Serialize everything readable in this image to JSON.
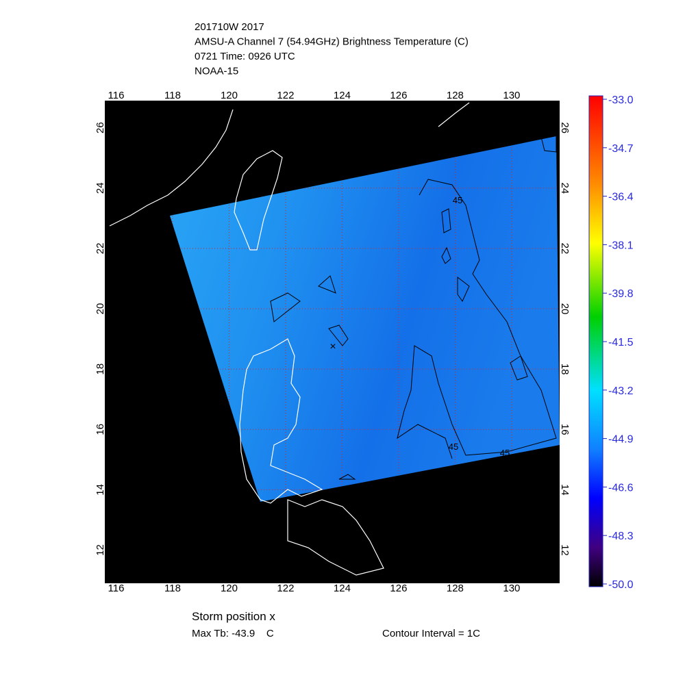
{
  "header": {
    "lines": [
      "201710W 2017",
      "AMSU-A Channel 7 (54.94GHz) Brightness Temperature (C)",
      "0721 Time: 0926 UTC",
      "NOAA-15"
    ]
  },
  "map": {
    "lonlim": [
      115.6,
      131.7
    ],
    "latlim": [
      10.9,
      26.9
    ],
    "lonticks": [
      116,
      118,
      120,
      122,
      124,
      126,
      128,
      130
    ],
    "latticks": [
      12,
      14,
      16,
      18,
      20,
      22,
      24,
      26
    ],
    "contour_labels": [
      "45",
      "45",
      "45"
    ]
  },
  "colorbar": {
    "range": [
      -50,
      -33
    ],
    "ticks": [
      {
        "value": -33,
        "label": "-33.0"
      },
      {
        "value": -34.7,
        "label": "-34.7"
      },
      {
        "value": -36.4,
        "label": "-36.4"
      },
      {
        "value": -38.1,
        "label": "-38.1"
      },
      {
        "value": -39.8,
        "label": "-39.8"
      },
      {
        "value": -41.5,
        "label": "-41.5"
      },
      {
        "value": -43.2,
        "label": "-43.2"
      },
      {
        "value": -44.9,
        "label": "-44.9"
      },
      {
        "value": -46.6,
        "label": "-46.6"
      },
      {
        "value": -48.3,
        "label": "-48.3"
      },
      {
        "value": -50,
        "label": "-50.0"
      }
    ]
  },
  "footer": {
    "storm": "Storm position x",
    "max_tb": "Max Tb: -43.9    C",
    "contour_interval": "Contour Interval = 1C"
  }
}
